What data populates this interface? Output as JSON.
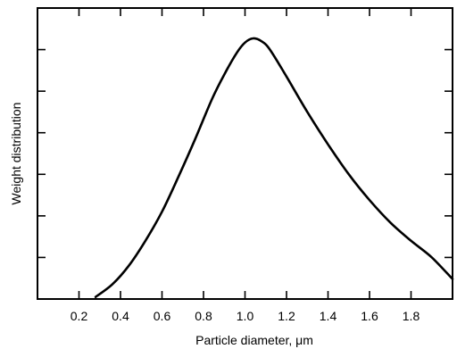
{
  "chart_data": {
    "type": "line",
    "title": "",
    "xlabel": "Particle diameter, μm",
    "ylabel": "Weight distribution",
    "xlim": [
      0.0,
      2.0
    ],
    "ylim": [
      0,
      7
    ],
    "x_ticks": [
      0.2,
      0.4,
      0.6,
      0.8,
      1.0,
      1.2,
      1.4,
      1.6,
      1.8
    ],
    "x_tick_labels": [
      "0.2",
      "0.4",
      "0.6",
      "0.8",
      "1.0",
      "1.2",
      "1.4",
      "1.6",
      "1.8"
    ],
    "y_ticks": [
      1,
      2,
      3,
      4,
      5,
      6
    ],
    "y_tick_labels": [],
    "grid": false,
    "legend": "none",
    "line_color": "#000000",
    "series": [
      {
        "name": "",
        "x": [
          0.28,
          0.36,
          0.44,
          0.52,
          0.6,
          0.68,
          0.76,
          0.84,
          0.9,
          0.96,
          1.0,
          1.04,
          1.08,
          1.12,
          1.2,
          1.3,
          1.4,
          1.5,
          1.6,
          1.7,
          1.8,
          1.9,
          2.0
        ],
        "y": [
          0.05,
          0.35,
          0.8,
          1.4,
          2.1,
          2.95,
          3.85,
          4.8,
          5.4,
          5.92,
          6.17,
          6.27,
          6.2,
          6.0,
          5.35,
          4.5,
          3.72,
          3.0,
          2.38,
          1.84,
          1.4,
          1.0,
          0.48
        ]
      }
    ]
  }
}
